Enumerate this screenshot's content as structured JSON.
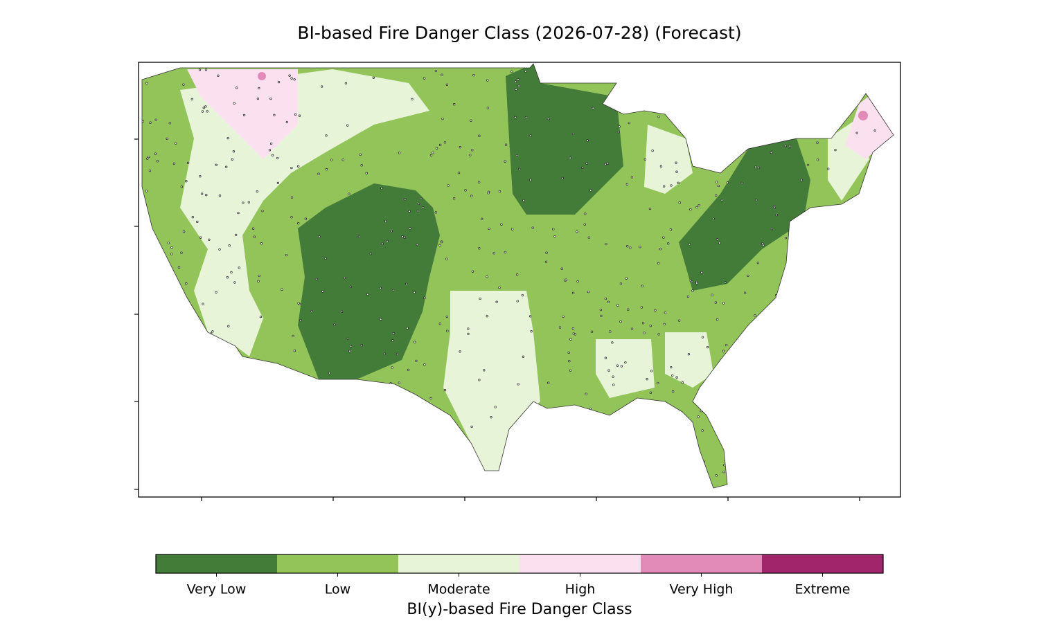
{
  "title": "BI-based Fire Danger Class (2026-07-28) (Forecast)",
  "colorbar": {
    "label": "BI(y)-based Fire Danger Class",
    "classes": [
      {
        "name": "Very Low",
        "color": "#437b39"
      },
      {
        "name": "Low",
        "color": "#92c45a"
      },
      {
        "name": "Moderate",
        "color": "#e8f4d8"
      },
      {
        "name": "High",
        "color": "#fbe1ef"
      },
      {
        "name": "Very High",
        "color": "#e38bb8"
      },
      {
        "name": "Extreme",
        "color": "#a1256b"
      }
    ]
  }
}
